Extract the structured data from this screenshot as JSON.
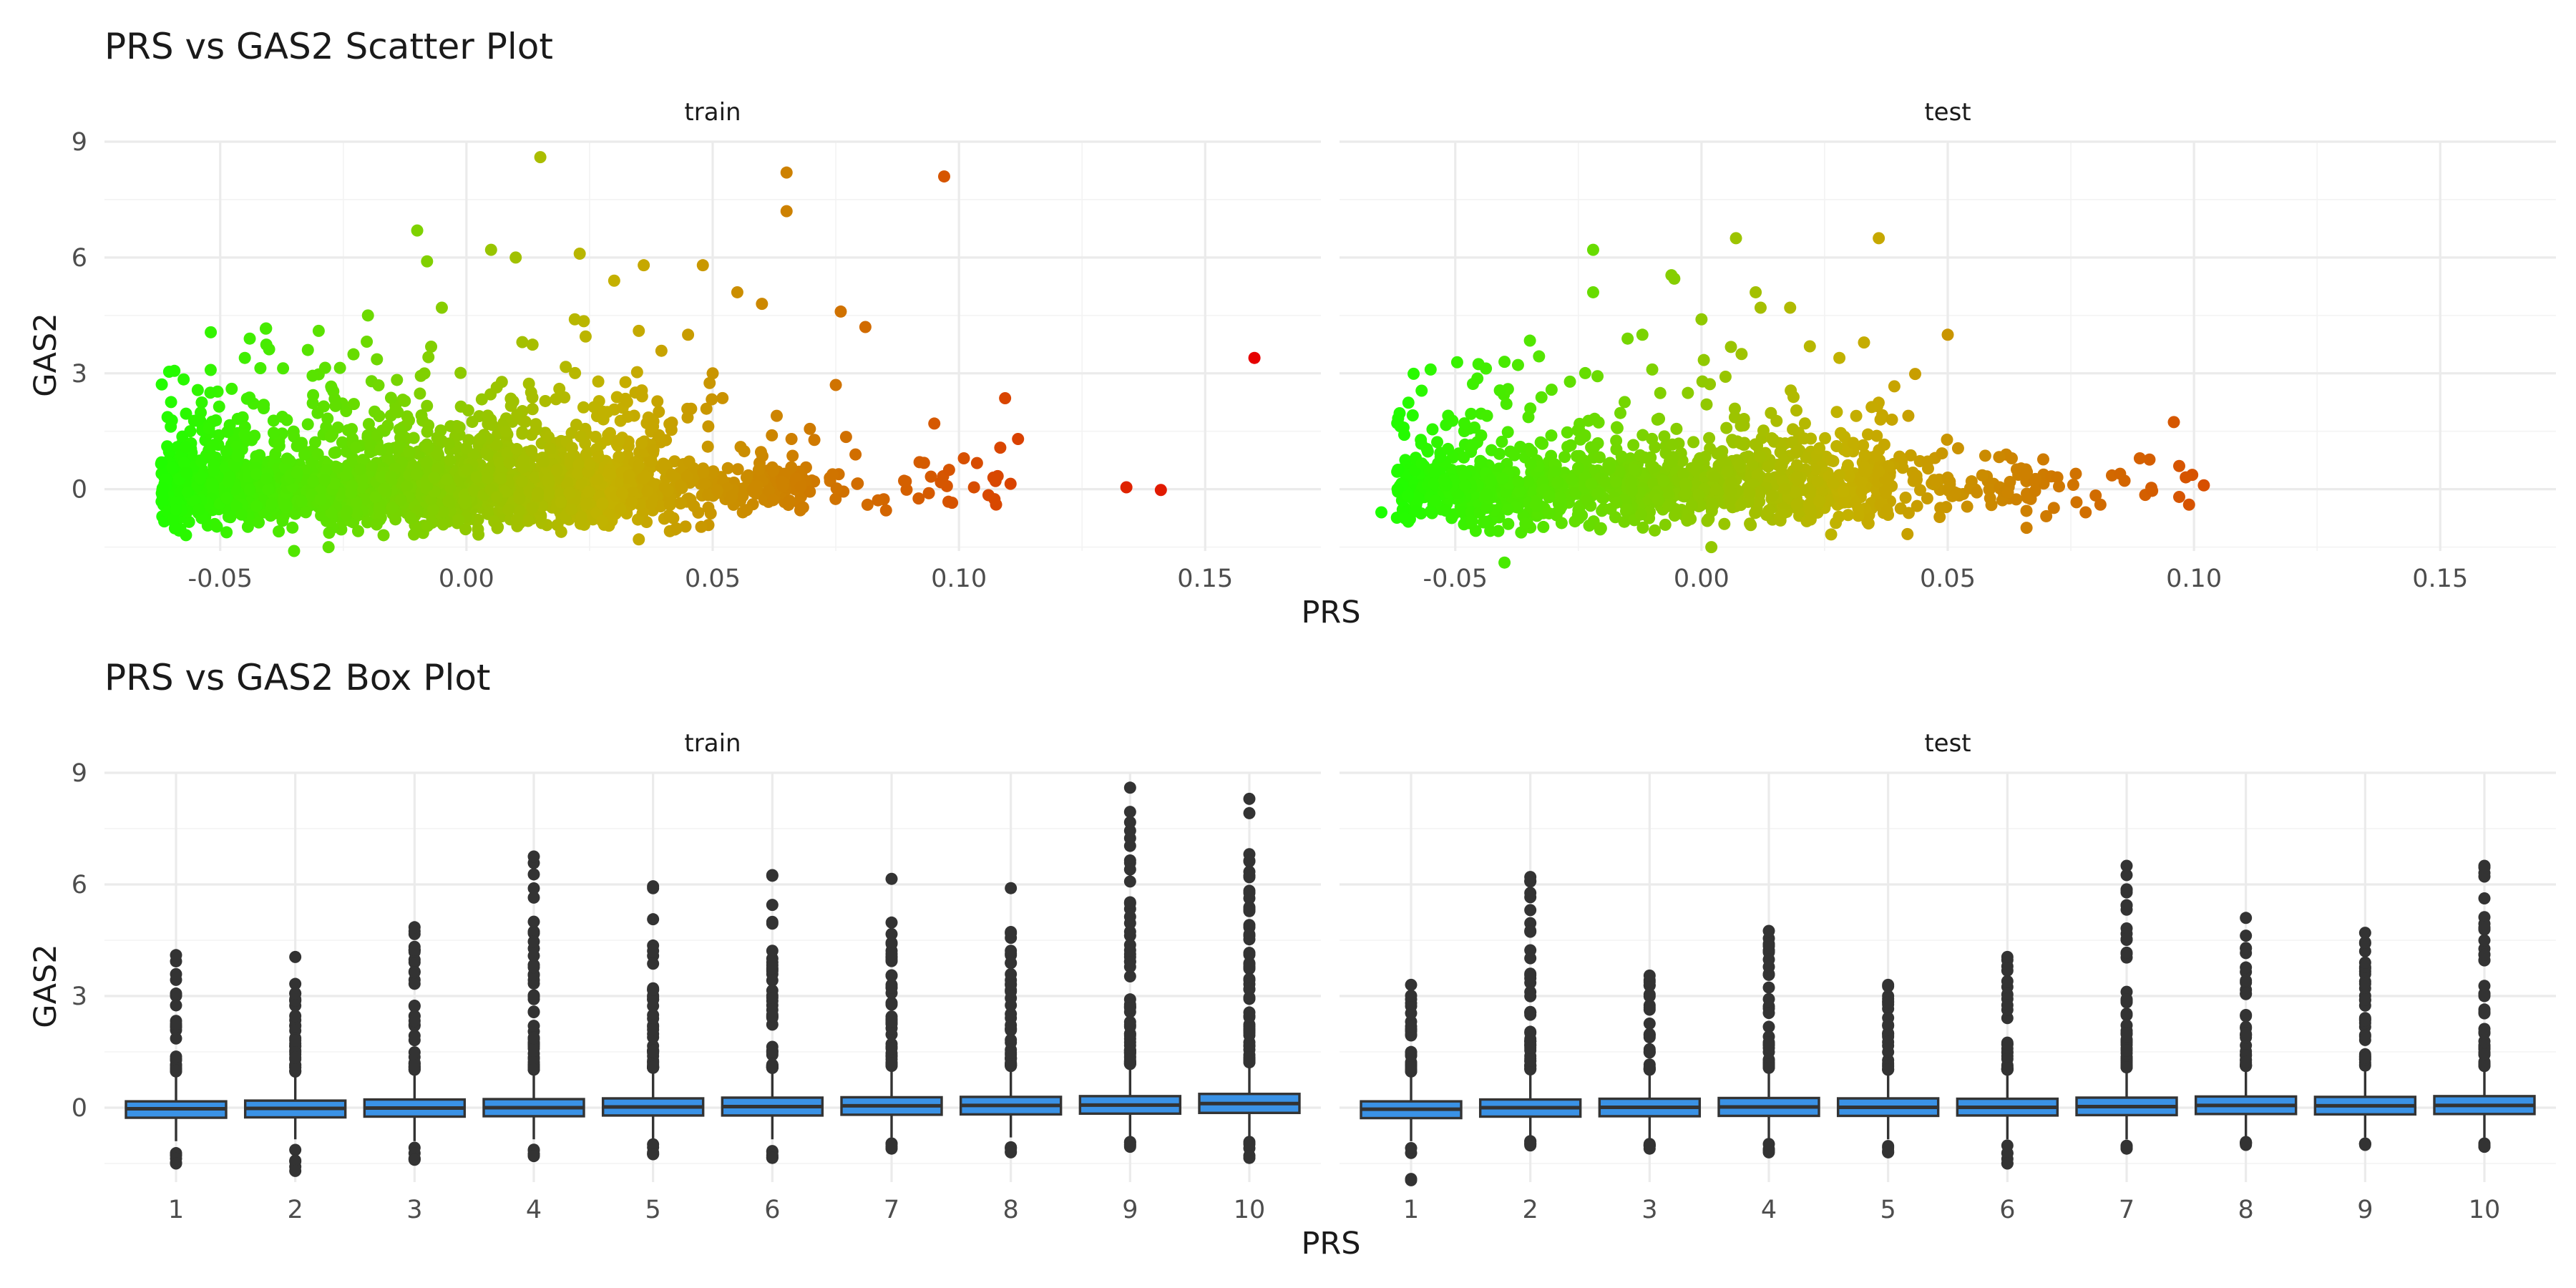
{
  "chart_data": [
    {
      "type": "scatter",
      "title": "PRS vs GAS2 Scatter Plot",
      "xlabel": "PRS",
      "ylabel": "GAS2",
      "xlim": [
        -0.0735,
        0.1735
      ],
      "ylim": [
        -1.6,
        9.0
      ],
      "x_ticks": [
        -0.05,
        0.0,
        0.05,
        0.1,
        0.15
      ],
      "x_tick_labels": [
        "-0.05",
        "0.00",
        "0.05",
        "0.10",
        "0.15"
      ],
      "y_ticks": [
        0,
        3,
        6,
        9
      ],
      "y_tick_labels": [
        "0",
        "3",
        "6",
        "9"
      ],
      "grid": true,
      "color_scale": {
        "low": "#1cff00",
        "mid": "#c4b100",
        "high": "#e60000",
        "low_value": -0.065,
        "high_value": 0.16
      },
      "panels": [
        {
          "name": "train",
          "outliers": [
            [
              0.015,
              8.6
            ],
            [
              0.065,
              8.2
            ],
            [
              0.097,
              8.1
            ],
            [
              0.065,
              7.2
            ],
            [
              -0.01,
              6.7
            ],
            [
              0.005,
              6.2
            ],
            [
              0.023,
              6.1
            ],
            [
              -0.008,
              5.9
            ],
            [
              0.036,
              5.8
            ],
            [
              0.048,
              5.8
            ],
            [
              0.01,
              6.0
            ],
            [
              0.03,
              5.4
            ],
            [
              0.055,
              5.1
            ],
            [
              0.06,
              4.8
            ],
            [
              0.076,
              4.6
            ],
            [
              0.081,
              4.2
            ],
            [
              0.045,
              4.0
            ],
            [
              0.035,
              4.1
            ],
            [
              0.022,
              4.4
            ],
            [
              -0.03,
              4.1
            ],
            [
              -0.044,
              3.9
            ],
            [
              -0.02,
              4.5
            ],
            [
              -0.005,
              4.7
            ],
            [
              0.05,
              3.0
            ],
            [
              0.075,
              2.7
            ],
            [
              0.095,
              1.7
            ],
            [
              0.112,
              1.3
            ],
            [
              0.101,
              0.8
            ],
            [
              0.098,
              0.5
            ],
            [
              0.107,
              0.3
            ],
            [
              0.092,
              0.7
            ],
            [
              0.066,
              1.3
            ],
            [
              0.063,
              1.9
            ],
            [
              0.134,
              0.05
            ],
            [
              0.141,
              -0.02
            ],
            [
              0.16,
              3.4
            ],
            [
              0.079,
              0.9
            ],
            [
              -0.035,
              -1.6
            ],
            [
              -0.028,
              -1.5
            ],
            [
              0.035,
              -1.3
            ],
            [
              -0.045,
              3.4
            ],
            [
              -0.052,
              2.5
            ]
          ]
        },
        {
          "name": "test",
          "outliers": [
            [
              0.007,
              6.5
            ],
            [
              0.036,
              6.5
            ],
            [
              -0.022,
              6.2
            ],
            [
              -0.022,
              5.1
            ],
            [
              0.011,
              5.1
            ],
            [
              0.012,
              4.7
            ],
            [
              0.0,
              4.4
            ],
            [
              -0.012,
              4.0
            ],
            [
              -0.015,
              3.9
            ],
            [
              0.018,
              4.7
            ],
            [
              0.05,
              4.0
            ],
            [
              -0.04,
              3.3
            ],
            [
              -0.055,
              3.1
            ],
            [
              0.033,
              3.8
            ],
            [
              0.022,
              3.7
            ],
            [
              0.042,
              1.9
            ],
            [
              0.063,
              0.8
            ],
            [
              0.076,
              0.4
            ],
            [
              0.089,
              0.8
            ],
            [
              0.097,
              0.6
            ],
            [
              0.102,
              0.1
            ],
            [
              0.097,
              -0.2
            ],
            [
              0.099,
              -0.4
            ],
            [
              0.085,
              0.4
            ],
            [
              0.07,
              -0.7
            ],
            [
              0.066,
              -1.0
            ],
            [
              0.081,
              -0.4
            ],
            [
              0.078,
              -0.6
            ],
            [
              -0.065,
              -0.6
            ],
            [
              -0.04,
              -1.9
            ],
            [
              0.002,
              -1.5
            ],
            [
              -0.01,
              3.1
            ],
            [
              0.028,
              3.4
            ]
          ]
        }
      ]
    },
    {
      "type": "box",
      "title": "PRS vs GAS2 Box Plot",
      "xlabel": "PRS",
      "ylabel": "GAS2",
      "categories": [
        "1",
        "2",
        "3",
        "4",
        "5",
        "6",
        "7",
        "8",
        "9",
        "10"
      ],
      "ylim": [
        -2.0,
        9.0
      ],
      "y_ticks": [
        0,
        3,
        6,
        9
      ],
      "y_tick_labels": [
        "0",
        "3",
        "6",
        "9"
      ],
      "grid": true,
      "box_fill": "#3a92e6",
      "box_stroke": "#333333",
      "panels": [
        {
          "name": "train",
          "boxes": [
            {
              "q1": -0.27,
              "median": -0.03,
              "q3": 0.17,
              "wlo": -0.9,
              "whi": 0.85,
              "out_max": 4.1,
              "out_min": -1.5
            },
            {
              "q1": -0.26,
              "median": -0.02,
              "q3": 0.19,
              "wlo": -0.85,
              "whi": 0.85,
              "out_max": 4.05,
              "out_min": -1.7
            },
            {
              "q1": -0.24,
              "median": -0.01,
              "q3": 0.22,
              "wlo": -0.9,
              "whi": 0.9,
              "out_max": 4.85,
              "out_min": -1.4
            },
            {
              "q1": -0.23,
              "median": 0.0,
              "q3": 0.23,
              "wlo": -0.85,
              "whi": 0.9,
              "out_max": 6.75,
              "out_min": -1.3
            },
            {
              "q1": -0.21,
              "median": 0.02,
              "q3": 0.25,
              "wlo": -0.85,
              "whi": 0.95,
              "out_max": 5.95,
              "out_min": -1.25
            },
            {
              "q1": -0.21,
              "median": 0.03,
              "q3": 0.27,
              "wlo": -0.85,
              "whi": 0.95,
              "out_max": 6.25,
              "out_min": -1.35
            },
            {
              "q1": -0.19,
              "median": 0.05,
              "q3": 0.28,
              "wlo": -0.8,
              "whi": 1.0,
              "out_max": 6.15,
              "out_min": -1.1
            },
            {
              "q1": -0.18,
              "median": 0.06,
              "q3": 0.29,
              "wlo": -0.8,
              "whi": 1.0,
              "out_max": 5.9,
              "out_min": -1.2
            },
            {
              "q1": -0.16,
              "median": 0.07,
              "q3": 0.31,
              "wlo": -0.8,
              "whi": 1.05,
              "out_max": 8.6,
              "out_min": -1.05
            },
            {
              "q1": -0.14,
              "median": 0.11,
              "q3": 0.37,
              "wlo": -0.8,
              "whi": 1.1,
              "out_max": 8.3,
              "out_min": -1.35
            }
          ]
        },
        {
          "name": "test",
          "boxes": [
            {
              "q1": -0.28,
              "median": -0.04,
              "q3": 0.17,
              "wlo": -0.9,
              "whi": 0.85,
              "out_max": 3.3,
              "out_min": -1.95
            },
            {
              "q1": -0.24,
              "median": 0.0,
              "q3": 0.22,
              "wlo": -0.9,
              "whi": 0.9,
              "out_max": 6.2,
              "out_min": -0.9
            },
            {
              "q1": -0.23,
              "median": 0.01,
              "q3": 0.24,
              "wlo": -0.85,
              "whi": 0.9,
              "out_max": 3.55,
              "out_min": -1.1
            },
            {
              "q1": -0.22,
              "median": 0.02,
              "q3": 0.26,
              "wlo": -0.85,
              "whi": 0.95,
              "out_max": 4.75,
              "out_min": -1.2
            },
            {
              "q1": -0.22,
              "median": 0.01,
              "q3": 0.25,
              "wlo": -0.85,
              "whi": 0.9,
              "out_max": 3.3,
              "out_min": -1.2
            },
            {
              "q1": -0.21,
              "median": 0.01,
              "q3": 0.24,
              "wlo": -0.85,
              "whi": 0.9,
              "out_max": 4.05,
              "out_min": -1.5
            },
            {
              "q1": -0.2,
              "median": 0.03,
              "q3": 0.27,
              "wlo": -0.85,
              "whi": 0.95,
              "out_max": 6.5,
              "out_min": -1.1
            },
            {
              "q1": -0.17,
              "median": 0.06,
              "q3": 0.3,
              "wlo": -0.8,
              "whi": 1.0,
              "out_max": 5.1,
              "out_min": -1.0
            },
            {
              "q1": -0.18,
              "median": 0.05,
              "q3": 0.29,
              "wlo": -0.8,
              "whi": 1.0,
              "out_max": 4.7,
              "out_min": -1.0
            },
            {
              "q1": -0.17,
              "median": 0.06,
              "q3": 0.31,
              "wlo": -0.8,
              "whi": 1.0,
              "out_max": 6.5,
              "out_min": -1.05
            }
          ]
        }
      ]
    }
  ]
}
